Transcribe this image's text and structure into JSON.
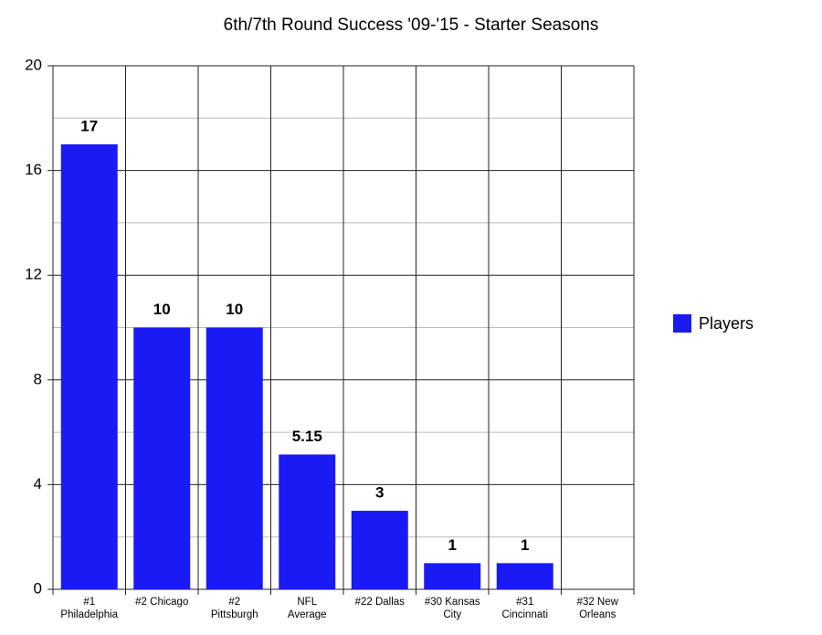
{
  "chart_data": {
    "type": "bar",
    "title": "6th/7th Round Success '09-'15 - Starter Seasons",
    "categories": [
      "#1 Philadelphia",
      "#2 Chicago",
      "#2 Pittsburgh",
      "NFL Average",
      "#22 Dallas",
      "#30 Kansas City",
      "#31 Cincinnati",
      "#32 New Orleans"
    ],
    "series": [
      {
        "name": "Players",
        "color": "#1a1af5",
        "values": [
          17,
          10,
          10,
          5.15,
          3,
          1,
          1,
          0
        ],
        "value_labels": [
          "17",
          "10",
          "10",
          "5.15",
          "3",
          "1",
          "1",
          null
        ]
      }
    ],
    "ylim": [
      0,
      20
    ],
    "yticks": [
      0,
      4,
      8,
      12,
      16,
      20
    ],
    "minor_yticks": [
      2,
      6,
      10,
      14,
      18
    ],
    "grid": true,
    "legend": "right"
  }
}
